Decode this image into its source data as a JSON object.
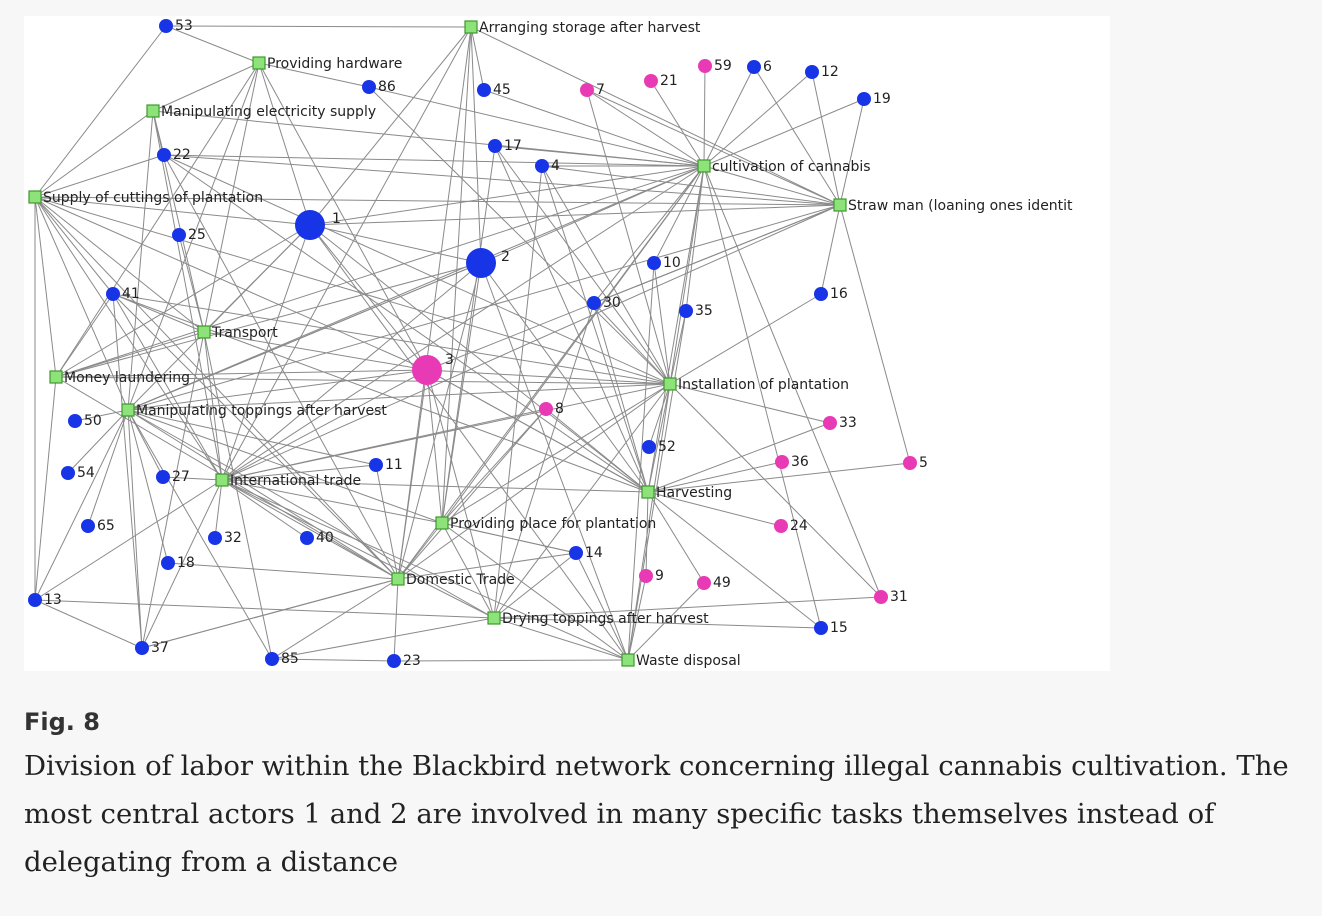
{
  "colors": {
    "actor_blue": "#1734e6",
    "actor_pink": "#e83ab5",
    "task_green": "#8ee27a"
  },
  "tasks": [
    {
      "id": "t_arr",
      "label": "Arranging storage after harvest"
    },
    {
      "id": "t_hw",
      "label": "Providing hardware"
    },
    {
      "id": "t_elec",
      "label": "Manipulating electricity supply"
    },
    {
      "id": "t_cut",
      "label": "Supply of cuttings of plantation"
    },
    {
      "id": "t_cult",
      "label": "cultivation of cannabis"
    },
    {
      "id": "t_straw",
      "label": "Straw man (loaning ones identit"
    },
    {
      "id": "t_trans",
      "label": "Transport"
    },
    {
      "id": "t_money",
      "label": "Money laundering"
    },
    {
      "id": "t_manip",
      "label": "Manipulating toppings after harvest"
    },
    {
      "id": "t_inst",
      "label": "Installation of plantation"
    },
    {
      "id": "t_intl",
      "label": "International trade"
    },
    {
      "id": "t_harv",
      "label": "Harvesting"
    },
    {
      "id": "t_place",
      "label": "Providing place for plantation"
    },
    {
      "id": "t_dom",
      "label": "Domestic Trade"
    },
    {
      "id": "t_dry",
      "label": "Drying toppings after harvest"
    },
    {
      "id": "t_waste",
      "label": "Waste disposal"
    }
  ],
  "actors": [
    {
      "id": "53",
      "label": "53",
      "color": "blue",
      "size": "small"
    },
    {
      "id": "86",
      "label": "86",
      "color": "blue",
      "size": "small"
    },
    {
      "id": "45",
      "label": "45",
      "color": "blue",
      "size": "small"
    },
    {
      "id": "7",
      "label": "7",
      "color": "pink",
      "size": "small"
    },
    {
      "id": "21",
      "label": "21",
      "color": "pink",
      "size": "small"
    },
    {
      "id": "59",
      "label": "59",
      "color": "pink",
      "size": "small"
    },
    {
      "id": "6",
      "label": "6",
      "color": "blue",
      "size": "small"
    },
    {
      "id": "12",
      "label": "12",
      "color": "blue",
      "size": "small"
    },
    {
      "id": "19",
      "label": "19",
      "color": "blue",
      "size": "small"
    },
    {
      "id": "22",
      "label": "22",
      "color": "blue",
      "size": "small"
    },
    {
      "id": "17",
      "label": "17",
      "color": "blue",
      "size": "small"
    },
    {
      "id": "4",
      "label": "4",
      "color": "blue",
      "size": "small"
    },
    {
      "id": "1",
      "label": "1",
      "color": "blue",
      "size": "large"
    },
    {
      "id": "25",
      "label": "25",
      "color": "blue",
      "size": "small"
    },
    {
      "id": "2",
      "label": "2",
      "color": "blue",
      "size": "large"
    },
    {
      "id": "10",
      "label": "10",
      "color": "blue",
      "size": "small"
    },
    {
      "id": "41",
      "label": "41",
      "color": "blue",
      "size": "small"
    },
    {
      "id": "30",
      "label": "30",
      "color": "blue",
      "size": "small"
    },
    {
      "id": "35",
      "label": "35",
      "color": "blue",
      "size": "small"
    },
    {
      "id": "16",
      "label": "16",
      "color": "blue",
      "size": "small"
    },
    {
      "id": "3",
      "label": "3",
      "color": "pink",
      "size": "large"
    },
    {
      "id": "50",
      "label": "50",
      "color": "blue",
      "size": "small"
    },
    {
      "id": "8",
      "label": "8",
      "color": "pink",
      "size": "small"
    },
    {
      "id": "33",
      "label": "33",
      "color": "pink",
      "size": "small"
    },
    {
      "id": "52",
      "label": "52",
      "color": "blue",
      "size": "small"
    },
    {
      "id": "54",
      "label": "54",
      "color": "blue",
      "size": "small"
    },
    {
      "id": "27",
      "label": "27",
      "color": "blue",
      "size": "small"
    },
    {
      "id": "11",
      "label": "11",
      "color": "blue",
      "size": "small"
    },
    {
      "id": "36",
      "label": "36",
      "color": "pink",
      "size": "small"
    },
    {
      "id": "5",
      "label": "5",
      "color": "pink",
      "size": "small"
    },
    {
      "id": "65",
      "label": "65",
      "color": "blue",
      "size": "small"
    },
    {
      "id": "32",
      "label": "32",
      "color": "blue",
      "size": "small"
    },
    {
      "id": "40",
      "label": "40",
      "color": "blue",
      "size": "small"
    },
    {
      "id": "24",
      "label": "24",
      "color": "pink",
      "size": "small"
    },
    {
      "id": "14",
      "label": "14",
      "color": "blue",
      "size": "small"
    },
    {
      "id": "18",
      "label": "18",
      "color": "blue",
      "size": "small"
    },
    {
      "id": "9",
      "label": "9",
      "color": "pink",
      "size": "small"
    },
    {
      "id": "49",
      "label": "49",
      "color": "pink",
      "size": "small"
    },
    {
      "id": "13",
      "label": "13",
      "color": "blue",
      "size": "small"
    },
    {
      "id": "31",
      "label": "31",
      "color": "pink",
      "size": "small"
    },
    {
      "id": "15",
      "label": "15",
      "color": "blue",
      "size": "small"
    },
    {
      "id": "37",
      "label": "37",
      "color": "blue",
      "size": "small"
    },
    {
      "id": "85",
      "label": "85",
      "color": "blue",
      "size": "small"
    },
    {
      "id": "23",
      "label": "23",
      "color": "blue",
      "size": "small"
    }
  ],
  "edges": [
    [
      "53",
      "t_arr"
    ],
    [
      "53",
      "t_hw"
    ],
    [
      "53",
      "t_cut"
    ],
    [
      "t_arr",
      "t_straw"
    ],
    [
      "t_arr",
      "45"
    ],
    [
      "t_arr",
      "t_place"
    ],
    [
      "t_arr",
      "t_dom"
    ],
    [
      "t_arr",
      "t_intl"
    ],
    [
      "t_arr",
      "1"
    ],
    [
      "t_arr",
      "2"
    ],
    [
      "t_hw",
      "86"
    ],
    [
      "t_hw",
      "t_elec"
    ],
    [
      "t_hw",
      "t_trans"
    ],
    [
      "t_hw",
      "3"
    ],
    [
      "t_hw",
      "1"
    ],
    [
      "t_hw",
      "t_money"
    ],
    [
      "t_hw",
      "t_manip"
    ],
    [
      "86",
      "t_cult"
    ],
    [
      "86",
      "t_inst"
    ],
    [
      "t_elec",
      "22"
    ],
    [
      "t_elec",
      "t_cut"
    ],
    [
      "t_elec",
      "t_trans"
    ],
    [
      "t_elec",
      "t_cult"
    ],
    [
      "t_elec",
      "t_manip"
    ],
    [
      "t_elec",
      "t_intl"
    ],
    [
      "22",
      "t_cut"
    ],
    [
      "22",
      "t_cult"
    ],
    [
      "22",
      "t_straw"
    ],
    [
      "22",
      "t_inst"
    ],
    [
      "22",
      "t_harv"
    ],
    [
      "22",
      "t_dom"
    ],
    [
      "t_cut",
      "1"
    ],
    [
      "t_cut",
      "41"
    ],
    [
      "t_cut",
      "t_money"
    ],
    [
      "t_cut",
      "13"
    ],
    [
      "t_cut",
      "t_manip"
    ],
    [
      "t_cut",
      "t_trans"
    ],
    [
      "t_cut",
      "t_intl"
    ],
    [
      "t_cut",
      "t_dom"
    ],
    [
      "t_cut",
      "3"
    ],
    [
      "t_cut",
      "t_inst"
    ],
    [
      "t_cut",
      "t_straw"
    ],
    [
      "t_cult",
      "7"
    ],
    [
      "t_cult",
      "21"
    ],
    [
      "t_cult",
      "59"
    ],
    [
      "t_cult",
      "6"
    ],
    [
      "t_cult",
      "12"
    ],
    [
      "t_cult",
      "19"
    ],
    [
      "t_cult",
      "17"
    ],
    [
      "t_cult",
      "4"
    ],
    [
      "t_cult",
      "45"
    ],
    [
      "t_cult",
      "1"
    ],
    [
      "t_cult",
      "2"
    ],
    [
      "t_cult",
      "10"
    ],
    [
      "t_cult",
      "30"
    ],
    [
      "t_cult",
      "35"
    ],
    [
      "t_cult",
      "t_inst"
    ],
    [
      "t_cult",
      "t_harv"
    ],
    [
      "t_cult",
      "t_intl"
    ],
    [
      "t_cult",
      "t_dom"
    ],
    [
      "t_cult",
      "t_manip"
    ],
    [
      "t_cult",
      "t_money"
    ],
    [
      "t_cult",
      "t_place"
    ],
    [
      "t_cult",
      "15"
    ],
    [
      "t_cult",
      "31"
    ],
    [
      "t_cult",
      "t_straw"
    ],
    [
      "t_straw",
      "1"
    ],
    [
      "t_straw",
      "4"
    ],
    [
      "t_straw",
      "6"
    ],
    [
      "t_straw",
      "12"
    ],
    [
      "t_straw",
      "19"
    ],
    [
      "t_straw",
      "7"
    ],
    [
      "t_straw",
      "16"
    ],
    [
      "t_straw",
      "5"
    ],
    [
      "t_straw",
      "30"
    ],
    [
      "t_straw",
      "t_manip"
    ],
    [
      "t_straw",
      "t_intl"
    ],
    [
      "t_straw",
      "3"
    ],
    [
      "t_inst",
      "7"
    ],
    [
      "t_inst",
      "17"
    ],
    [
      "t_inst",
      "4"
    ],
    [
      "t_inst",
      "30"
    ],
    [
      "t_inst",
      "10"
    ],
    [
      "t_inst",
      "35"
    ],
    [
      "t_inst",
      "16"
    ],
    [
      "t_inst",
      "33"
    ],
    [
      "t_inst",
      "52"
    ],
    [
      "t_inst",
      "3"
    ],
    [
      "t_inst",
      "41"
    ],
    [
      "t_inst",
      "t_harv"
    ],
    [
      "t_inst",
      "t_place"
    ],
    [
      "t_inst",
      "t_dom"
    ],
    [
      "t_inst",
      "t_intl"
    ],
    [
      "t_inst",
      "t_manip"
    ],
    [
      "t_inst",
      "t_money"
    ],
    [
      "t_inst",
      "31"
    ],
    [
      "t_inst",
      "t_dry"
    ],
    [
      "t_inst",
      "t_waste"
    ],
    [
      "t_harv",
      "36"
    ],
    [
      "t_harv",
      "24"
    ],
    [
      "t_harv",
      "5"
    ],
    [
      "t_harv",
      "33"
    ],
    [
      "t_harv",
      "3"
    ],
    [
      "t_harv",
      "8"
    ],
    [
      "t_harv",
      "41"
    ],
    [
      "t_harv",
      "t_intl"
    ],
    [
      "t_harv",
      "17"
    ],
    [
      "t_harv",
      "4"
    ],
    [
      "t_harv",
      "15"
    ],
    [
      "t_harv",
      "30"
    ],
    [
      "t_place",
      "14"
    ],
    [
      "t_place",
      "2"
    ],
    [
      "t_place",
      "3"
    ],
    [
      "t_place",
      "8"
    ],
    [
      "t_place",
      "t_intl"
    ],
    [
      "t_place",
      "t_dom"
    ],
    [
      "t_place",
      "t_dry"
    ],
    [
      "t_place",
      "t_waste"
    ],
    [
      "t_place",
      "t_manip"
    ],
    [
      "t_place",
      "17"
    ],
    [
      "t_dom",
      "2"
    ],
    [
      "t_dom",
      "3"
    ],
    [
      "t_dom",
      "8"
    ],
    [
      "t_dom",
      "11"
    ],
    [
      "t_dom",
      "18"
    ],
    [
      "t_dom",
      "23"
    ],
    [
      "t_dom",
      "85"
    ],
    [
      "t_dom",
      "37"
    ],
    [
      "t_dom",
      "14"
    ],
    [
      "t_dom",
      "t_intl"
    ],
    [
      "t_dom",
      "t_manip"
    ],
    [
      "t_dom",
      "41"
    ],
    [
      "t_dom",
      "t_money"
    ],
    [
      "t_dry",
      "13"
    ],
    [
      "t_dry",
      "t_waste"
    ],
    [
      "t_dry",
      "14"
    ],
    [
      "t_dry",
      "31"
    ],
    [
      "t_dry",
      "30"
    ],
    [
      "t_dry",
      "t_manip"
    ],
    [
      "t_dry",
      "4"
    ],
    [
      "t_dry",
      "t_intl"
    ],
    [
      "t_dry",
      "3"
    ],
    [
      "t_waste",
      "23"
    ],
    [
      "t_waste",
      "14"
    ],
    [
      "t_waste",
      "t_intl"
    ],
    [
      "t_waste",
      "10"
    ],
    [
      "t_waste",
      "2"
    ],
    [
      "t_waste",
      "1"
    ],
    [
      "t_waste",
      "9"
    ],
    [
      "t_waste",
      "49"
    ],
    [
      "t_waste",
      "35"
    ],
    [
      "t_intl",
      "27"
    ],
    [
      "t_intl",
      "32"
    ],
    [
      "t_intl",
      "40"
    ],
    [
      "t_intl",
      "11"
    ],
    [
      "t_intl",
      "37"
    ],
    [
      "t_intl",
      "13"
    ],
    [
      "t_intl",
      "2"
    ],
    [
      "t_intl",
      "3"
    ],
    [
      "t_intl",
      "8"
    ],
    [
      "t_intl",
      "41"
    ],
    [
      "t_intl",
      "1"
    ],
    [
      "t_manip",
      "50"
    ],
    [
      "t_manip",
      "54"
    ],
    [
      "t_manip",
      "65"
    ],
    [
      "t_manip",
      "37"
    ],
    [
      "t_manip",
      "13"
    ],
    [
      "t_manip",
      "18"
    ],
    [
      "t_manip",
      "27"
    ],
    [
      "t_manip",
      "85"
    ],
    [
      "t_manip",
      "3"
    ],
    [
      "t_manip",
      "1"
    ],
    [
      "t_manip",
      "2"
    ],
    [
      "t_manip",
      "11"
    ],
    [
      "t_money",
      "1"
    ],
    [
      "t_money",
      "3"
    ],
    [
      "t_money",
      "13"
    ],
    [
      "t_money",
      "2"
    ],
    [
      "t_money",
      "41"
    ],
    [
      "t_money",
      "t_trans"
    ],
    [
      "t_trans",
      "25"
    ],
    [
      "t_trans",
      "41"
    ],
    [
      "t_trans",
      "1"
    ],
    [
      "t_trans",
      "3"
    ],
    [
      "t_trans",
      "85"
    ],
    [
      "t_trans",
      "t_intl"
    ],
    [
      "t_trans",
      "37"
    ],
    [
      "1",
      "3"
    ],
    [
      "1",
      "2"
    ],
    [
      "1",
      "t_harv"
    ],
    [
      "2",
      "t_harv"
    ],
    [
      "2",
      "t_manip"
    ],
    [
      "3",
      "t_harv"
    ],
    [
      "41",
      "37"
    ],
    [
      "13",
      "37"
    ],
    [
      "37",
      "t_dom"
    ],
    [
      "23",
      "85"
    ],
    [
      "t_harv",
      "9"
    ],
    [
      "t_harv",
      "49"
    ],
    [
      "t_place",
      "14"
    ],
    [
      "t_dry",
      "15"
    ],
    [
      "t_dry",
      "85"
    ]
  ],
  "caption": {
    "label": "Fig. 8",
    "text": "Division of labor within the Blackbird network concerning illegal cannabis cultivation. The most central actors 1 and 2 are involved in many specific tasks themselves instead of delegating from a distance"
  }
}
